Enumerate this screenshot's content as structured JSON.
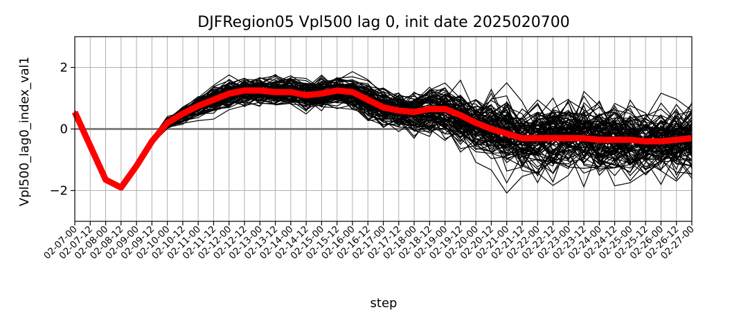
{
  "chart_data": {
    "type": "line",
    "title": "DJFRegion05 Vpl500 lag 0, init date 2025020700",
    "xlabel": "step",
    "ylabel": "Vpl500_lag0_index_val1",
    "ylim": [
      -3,
      3
    ],
    "yticks": [
      -2,
      0,
      2
    ],
    "ytick_labels": [
      "−2",
      "0",
      "2"
    ],
    "grid": true,
    "reference_line_y": 0,
    "categories": [
      "02-07-00",
      "02-07-12",
      "02-08-00",
      "02-08-12",
      "02-09-00",
      "02-09-12",
      "02-10-00",
      "02-10-12",
      "02-11-00",
      "02-11-12",
      "02-12-00",
      "02-12-12",
      "02-13-00",
      "02-13-12",
      "02-14-00",
      "02-14-12",
      "02-15-00",
      "02-15-12",
      "02-16-00",
      "02-16-12",
      "02-17-00",
      "02-17-12",
      "02-18-00",
      "02-18-12",
      "02-19-00",
      "02-19-12",
      "02-20-00",
      "02-20-12",
      "02-21-00",
      "02-21-12",
      "02-22-00",
      "02-22-12",
      "02-23-00",
      "02-23-12",
      "02-24-00",
      "02-24-12",
      "02-25-00",
      "02-25-12",
      "02-26-00",
      "02-26-12",
      "02-27-00"
    ],
    "series": [
      {
        "role": "ensemble-mean",
        "color": "#ff0000",
        "values": [
          0.55,
          -0.55,
          -1.65,
          -1.9,
          -1.2,
          -0.4,
          0.2,
          0.5,
          0.75,
          0.95,
          1.15,
          1.25,
          1.25,
          1.2,
          1.2,
          1.1,
          1.15,
          1.25,
          1.2,
          0.95,
          0.7,
          0.6,
          0.55,
          0.65,
          0.65,
          0.45,
          0.2,
          0.0,
          -0.15,
          -0.3,
          -0.3,
          -0.3,
          -0.3,
          -0.3,
          -0.35,
          -0.35,
          -0.35,
          -0.4,
          -0.4,
          -0.35,
          -0.3
        ]
      }
    ],
    "ensemble": {
      "role": "ensemble-members",
      "color": "#000000",
      "member_count": 100,
      "start_value": 0.6,
      "spread_by_step": [
        0.0,
        0.02,
        0.05,
        0.08,
        0.1,
        0.15,
        0.25,
        0.35,
        0.45,
        0.5,
        0.55,
        0.6,
        0.6,
        0.6,
        0.6,
        0.6,
        0.6,
        0.6,
        0.65,
        0.7,
        0.75,
        0.8,
        0.85,
        0.95,
        1.05,
        1.15,
        1.25,
        1.3,
        1.35,
        1.4,
        1.45,
        1.5,
        1.5,
        1.5,
        1.5,
        1.5,
        1.5,
        1.5,
        1.5,
        1.5,
        1.5
      ]
    },
    "colors": {
      "mean": "#ff0000",
      "members": "#000000",
      "grid": "#b0b0b0",
      "zero_line": "#808080"
    }
  }
}
